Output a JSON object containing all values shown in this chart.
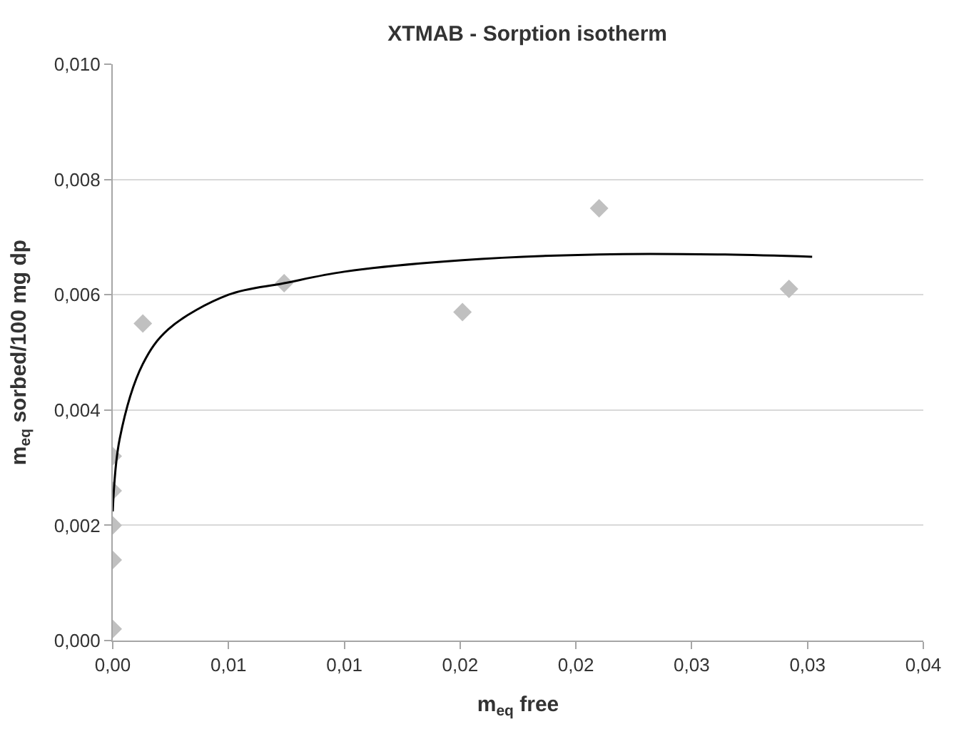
{
  "chart_data": {
    "type": "scatter",
    "title": "XTMAB - Sorption isotherm",
    "xlabel": "m$_{eq}$ free",
    "ylabel": "m$_{eq}$ sorbed/100 mg dp",
    "series": [
      {
        "color": "#c0c0c0",
        "marker": "diamond",
        "x": [
          0,
          0,
          0,
          0,
          0,
          0.0013,
          0.0074,
          0.0151,
          0.021,
          0.0292
        ],
        "values": [
          0.0032,
          0.0026,
          0.002,
          0.0014,
          0.0002,
          0.0055,
          0.0062,
          0.0057,
          0.0075,
          0.0061
        ]
      },
      {
        "type": "line",
        "color": "#000000",
        "marker": "none",
        "line_style": "solid",
        "x": [
          0,
          0.0003,
          0.0013,
          0.0024,
          0.005,
          0.0074,
          0.01,
          0.0151,
          0.021,
          0.0261,
          0.0302
        ],
        "values": [
          0.00224,
          0.0035,
          0.0048,
          0.0054,
          0.006,
          0.0062,
          0.0064,
          0.0066,
          0.0067,
          0.0067,
          0.00666
        ]
      }
    ],
    "xlim": [
      0,
      0.035
    ],
    "xticks": [
      {
        "value": 0,
        "label": "0,00"
      },
      {
        "value": 0.005,
        "label": "0,01"
      },
      {
        "value": 0.01,
        "label": "0,01"
      },
      {
        "value": 0.015,
        "label": "0,02"
      },
      {
        "value": 0.02,
        "label": "0,02"
      },
      {
        "value": 0.025,
        "label": "0,03"
      },
      {
        "value": 0.03,
        "label": "0,03"
      },
      {
        "value": 0.035,
        "label": "0,04"
      }
    ],
    "ylim": [
      0,
      0.01
    ],
    "yticks": [
      {
        "value": 0,
        "label": "0,000"
      },
      {
        "value": 0.002,
        "label": "0,002"
      },
      {
        "value": 0.004,
        "label": "0,004"
      },
      {
        "value": 0.006,
        "label": "0,006"
      },
      {
        "value": 0.008,
        "label": "0,008"
      },
      {
        "value": 0.01,
        "label": "0,010"
      }
    ],
    "grid": "y"
  }
}
